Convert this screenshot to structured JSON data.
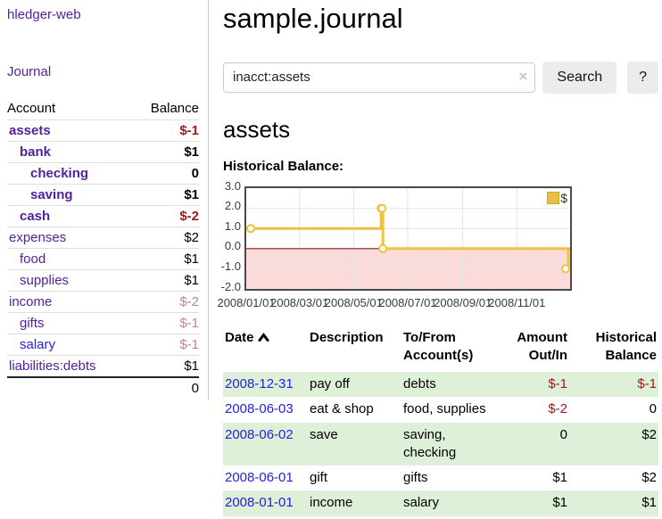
{
  "sidebar": {
    "brand": "hledger-web",
    "journal_link": "Journal",
    "accounts": {
      "header_account": "Account",
      "header_balance": "Balance",
      "rows": [
        {
          "name": "assets",
          "balance": "$-1"
        },
        {
          "name": "bank",
          "balance": "$1"
        },
        {
          "name": "checking",
          "balance": "0"
        },
        {
          "name": "saving",
          "balance": "$1"
        },
        {
          "name": "cash",
          "balance": "$-2"
        },
        {
          "name": "expenses",
          "balance": "$2"
        },
        {
          "name": "food",
          "balance": "$1"
        },
        {
          "name": "supplies",
          "balance": "$1"
        },
        {
          "name": "income",
          "balance": "$-2"
        },
        {
          "name": "gifts",
          "balance": "$-1"
        },
        {
          "name": "salary",
          "balance": "$-1"
        },
        {
          "name": "liabilities:debts",
          "balance": "$1"
        }
      ],
      "total": "0"
    }
  },
  "main": {
    "title": "sample.journal",
    "search": {
      "value": "inacct:assets",
      "clear_icon": "×",
      "button_label": "Search",
      "help_label": "?"
    },
    "account_heading": "assets",
    "section_label": "Historical Balance:",
    "register": {
      "headers": {
        "date": "Date",
        "description": "Description",
        "accounts": "To/From Account(s)",
        "amount": "Amount Out/In",
        "balance": "Historical Balance"
      },
      "rows": [
        {
          "date": "2008-12-31",
          "description": "pay off",
          "accounts": "debts",
          "amount": "$-1",
          "balance": "$-1"
        },
        {
          "date": "2008-06-03",
          "description": "eat & shop",
          "accounts": "food, supplies",
          "amount": "$-2",
          "balance": "0"
        },
        {
          "date": "2008-06-02",
          "description": "save",
          "accounts": "saving, checking",
          "amount": "0",
          "balance": "$2"
        },
        {
          "date": "2008-06-01",
          "description": "gift",
          "accounts": "gifts",
          "amount": "$1",
          "balance": "$2"
        },
        {
          "date": "2008-01-01",
          "description": "income",
          "accounts": "salary",
          "amount": "$1",
          "balance": "$1"
        }
      ]
    }
  },
  "colors": {
    "link_purple": "#52219b",
    "link_blue": "#2222dd",
    "negative_red": "#9b1a1a",
    "faded_negative_red": "#c58585",
    "row_green": "#dff0d8",
    "chart_line_gold": "#edc240"
  },
  "chart_data": {
    "type": "line",
    "step": true,
    "title": "Historical Balance:",
    "series": [
      {
        "name": "$",
        "points": [
          [
            "2008-01-01",
            1
          ],
          [
            "2008-06-01",
            2
          ],
          [
            "2008-06-02",
            2
          ],
          [
            "2008-06-03",
            0
          ],
          [
            "2008-12-31",
            -1
          ]
        ]
      }
    ],
    "x_range": [
      "2008-01-01",
      "2008-12-31"
    ],
    "ylim": [
      -2,
      3
    ],
    "y_ticks": [
      "3.0",
      "2.0",
      "1.0",
      "0.0",
      "-1.0",
      "-2.0"
    ],
    "x_ticks": [
      "2008/01/01",
      "2008/03/01",
      "2008/05/01",
      "2008/07/01",
      "2008/09/01",
      "2008/11/01"
    ],
    "legend": {
      "label": "$",
      "position": "top-right"
    },
    "grid": true,
    "xlabel": "",
    "ylabel": "",
    "line_color": "#edc240",
    "negative_region_color": "#fbdada",
    "zero_line_color": "#8b1a1a"
  }
}
